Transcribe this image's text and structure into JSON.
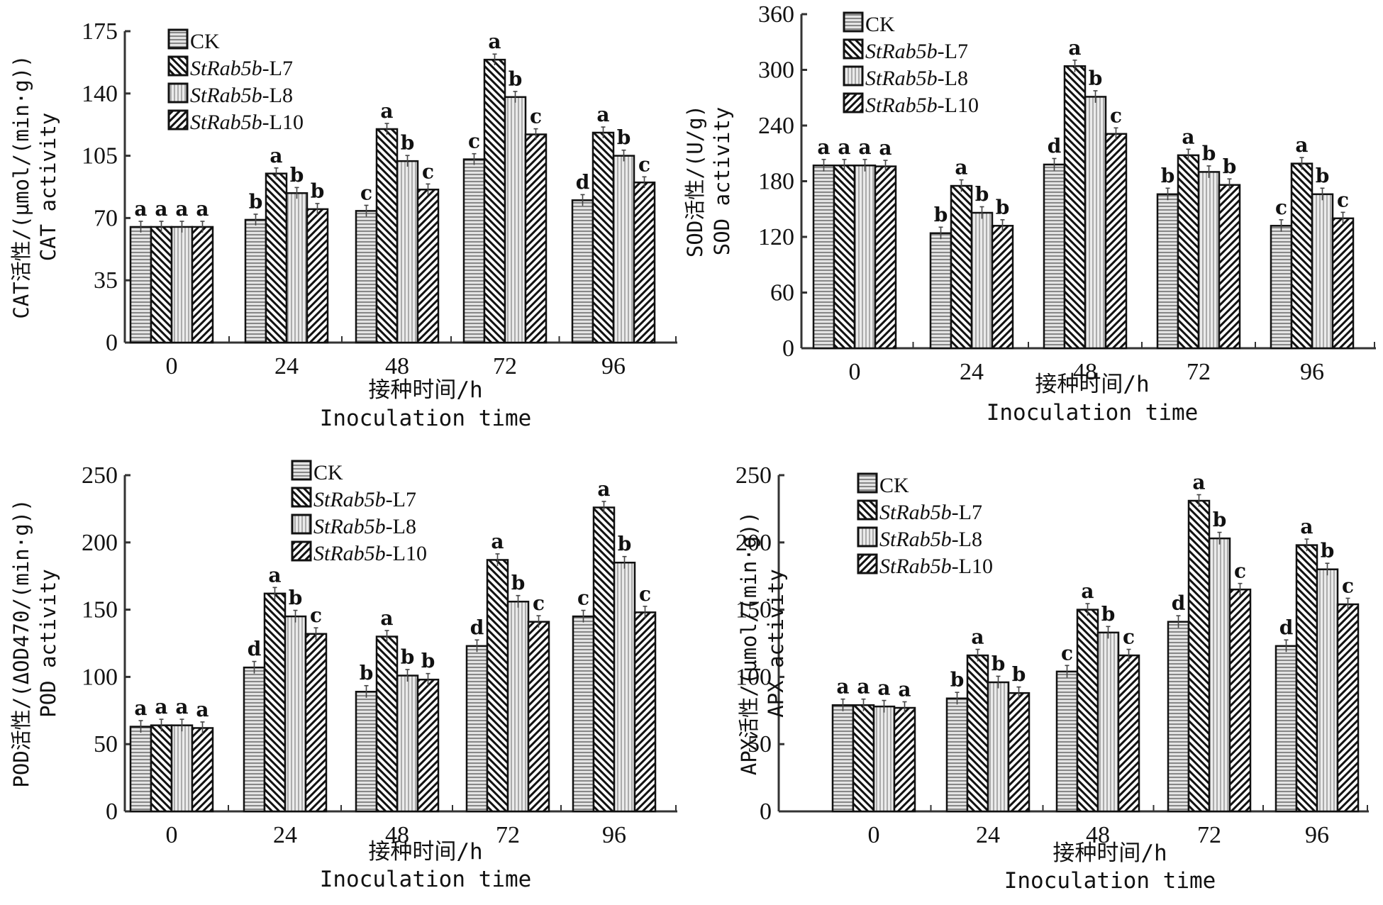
{
  "chart_data": [
    {
      "type": "bar",
      "id": "cat",
      "ylabel_cn": "CAT活性/(μmol/(min·g))",
      "ylabel_en": "CAT activity",
      "xlabel_cn": "接种时间/h",
      "xlabel_en": "Inoculation time",
      "categories": [
        "0",
        "24",
        "48",
        "72",
        "96"
      ],
      "yticks": [
        0,
        35,
        70,
        105,
        140,
        175
      ],
      "ylim": [
        0,
        175
      ],
      "legend_position": "top-left",
      "series": [
        {
          "name": "CK",
          "italic_prefix": "",
          "suffix": "CK",
          "values": [
            65,
            69,
            74,
            103,
            80
          ],
          "letters": [
            "a",
            "b",
            "c",
            "c",
            "d"
          ]
        },
        {
          "name": "StRab5b-L7",
          "italic_prefix": "StRab5b",
          "suffix": "-L7",
          "values": [
            65,
            95,
            120,
            159,
            118
          ],
          "letters": [
            "a",
            "a",
            "a",
            "a",
            "a"
          ]
        },
        {
          "name": "StRab5b-L8",
          "italic_prefix": "StRab5b",
          "suffix": "-L8",
          "values": [
            65,
            84,
            102,
            138,
            105
          ],
          "letters": [
            "a",
            "b",
            "b",
            "b",
            "b"
          ]
        },
        {
          "name": "StRab5b-L10",
          "italic_prefix": "StRab5b",
          "suffix": "-L10",
          "values": [
            65,
            75,
            86,
            117,
            90
          ],
          "letters": [
            "a",
            "b",
            "c",
            "c",
            "c"
          ]
        }
      ]
    },
    {
      "type": "bar",
      "id": "sod",
      "ylabel_cn": "SOD活性/(U/g)",
      "ylabel_en": "SOD activity",
      "xlabel_cn": "接种时间/h",
      "xlabel_en": "Inoculation time",
      "categories": [
        "0",
        "24",
        "48",
        "72",
        "96"
      ],
      "yticks": [
        0,
        60,
        120,
        180,
        240,
        300,
        360
      ],
      "ylim": [
        0,
        360
      ],
      "legend_position": "top-left",
      "series": [
        {
          "name": "CK",
          "italic_prefix": "",
          "suffix": "CK",
          "values": [
            197,
            124,
            198,
            166,
            132
          ],
          "letters": [
            "a",
            "b",
            "d",
            "b",
            "c"
          ]
        },
        {
          "name": "StRab5b-L7",
          "italic_prefix": "StRab5b",
          "suffix": "-L7",
          "values": [
            197,
            175,
            304,
            208,
            199
          ],
          "letters": [
            "a",
            "a",
            "a",
            "a",
            "a"
          ]
        },
        {
          "name": "StRab5b-L8",
          "italic_prefix": "StRab5b",
          "suffix": "-L8",
          "values": [
            197,
            146,
            271,
            190,
            166
          ],
          "letters": [
            "a",
            "b",
            "b",
            "b",
            "b"
          ]
        },
        {
          "name": "StRab5b-L10",
          "italic_prefix": "StRab5b",
          "suffix": "-L10",
          "values": [
            196,
            132,
            231,
            176,
            140
          ],
          "letters": [
            "a",
            "b",
            "c",
            "b",
            "c"
          ]
        }
      ]
    },
    {
      "type": "bar",
      "id": "pod",
      "ylabel_cn": "POD活性/(ΔOD470/(min·g))",
      "ylabel_en": "POD activity",
      "xlabel_cn": "接种时间/h",
      "xlabel_en": "Inoculation time",
      "categories": [
        "0",
        "24",
        "48",
        "72",
        "96"
      ],
      "yticks": [
        0,
        50,
        100,
        150,
        200,
        250
      ],
      "ylim": [
        0,
        250
      ],
      "legend_position": "top-center",
      "series": [
        {
          "name": "CK",
          "italic_prefix": "",
          "suffix": "CK",
          "values": [
            63,
            107,
            89,
            123,
            145
          ],
          "letters": [
            "a",
            "d",
            "b",
            "d",
            "c"
          ]
        },
        {
          "name": "StRab5b-L7",
          "italic_prefix": "StRab5b",
          "suffix": "-L7",
          "values": [
            64,
            162,
            130,
            187,
            226
          ],
          "letters": [
            "a",
            "a",
            "a",
            "a",
            "a"
          ]
        },
        {
          "name": "StRab5b-L8",
          "italic_prefix": "StRab5b",
          "suffix": "-L8",
          "values": [
            64,
            145,
            101,
            156,
            185
          ],
          "letters": [
            "a",
            "b",
            "b",
            "b",
            "b"
          ]
        },
        {
          "name": "StRab5b-L10",
          "italic_prefix": "StRab5b",
          "suffix": "-L10",
          "values": [
            62,
            132,
            98,
            141,
            148
          ],
          "letters": [
            "a",
            "c",
            "b",
            "c",
            "c"
          ]
        }
      ]
    },
    {
      "type": "bar",
      "id": "apx",
      "ylabel_cn": "APX活性/(μmol/(min·g))",
      "ylabel_en": "APX activity",
      "xlabel_cn": "接种时间/h",
      "xlabel_en": "Inoculation time",
      "categories": [
        "0",
        "24",
        "48",
        "72",
        "96"
      ],
      "yticks": [
        0,
        50,
        100,
        150,
        200,
        250
      ],
      "ylim": [
        0,
        250
      ],
      "legend_position": "top-left",
      "series": [
        {
          "name": "CK",
          "italic_prefix": "",
          "suffix": "CK",
          "values": [
            79,
            84,
            104,
            141,
            123
          ],
          "letters": [
            "a",
            "b",
            "c",
            "d",
            "d"
          ]
        },
        {
          "name": "StRab5b-L7",
          "italic_prefix": "StRab5b",
          "suffix": "-L7",
          "values": [
            79,
            116,
            150,
            231,
            198
          ],
          "letters": [
            "a",
            "a",
            "a",
            "a",
            "a"
          ]
        },
        {
          "name": "StRab5b-L8",
          "italic_prefix": "StRab5b",
          "suffix": "-L8",
          "values": [
            78,
            96,
            133,
            203,
            180
          ],
          "letters": [
            "a",
            "b",
            "b",
            "b",
            "b"
          ]
        },
        {
          "name": "StRab5b-L10",
          "italic_prefix": "StRab5b",
          "suffix": "-L10",
          "values": [
            77,
            88,
            116,
            165,
            154
          ],
          "letters": [
            "a",
            "b",
            "c",
            "c",
            "c"
          ]
        }
      ]
    }
  ]
}
